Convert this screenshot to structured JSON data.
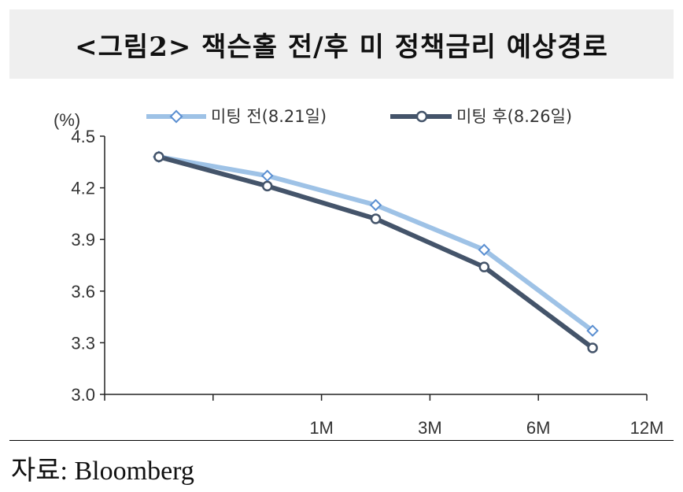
{
  "header": {
    "title": "<그림2> 잭슨홀 전/후 미 정책금리 예상경로"
  },
  "source": "자료: Bloomberg",
  "colors": {
    "series1": "#9ec2e6",
    "series2": "#44546a"
  },
  "chart_data": {
    "type": "line",
    "categories": [
      "",
      "1M",
      "3M",
      "6M",
      "12M"
    ],
    "ylabel": "(%)",
    "ylim": [
      3.0,
      4.5
    ],
    "yticks": [
      "4.5",
      "4.2",
      "3.9",
      "3.6",
      "3.3",
      "3.0"
    ],
    "grid": false,
    "legend_position": "top",
    "series": [
      {
        "name": "미팅 전(8.21일)",
        "values": [
          4.38,
          4.27,
          4.1,
          3.84,
          3.37
        ]
      },
      {
        "name": "미팅 후(8.26일)",
        "values": [
          4.38,
          4.21,
          4.02,
          3.74,
          3.27
        ]
      }
    ]
  }
}
